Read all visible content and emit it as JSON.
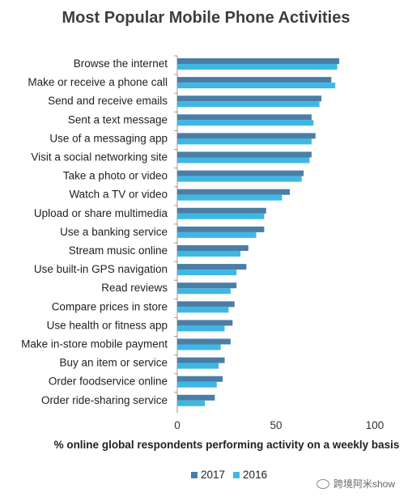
{
  "chart_data": {
    "type": "bar",
    "orientation": "horizontal",
    "title": "Most Popular Mobile Phone Activities",
    "xlabel": "% online global respondents performing activity on a weekly basis",
    "xlim": [
      0,
      100
    ],
    "xticks": [
      0,
      50,
      100
    ],
    "legend_position": "bottom",
    "categories": [
      "Browse the internet",
      "Make or receive a phone call",
      "Send and receive emails",
      "Sent a text message",
      "Use of a messaging app",
      "Visit a social networking site",
      "Take a photo or video",
      "Watch a TV or video",
      "Upload or share multimedia",
      "Use a banking service",
      "Stream music online",
      "Use built-in GPS navigation",
      "Read reviews",
      "Compare prices in store",
      "Use health or fitness app",
      "Make in-store mobile payment",
      "Buy an item or service",
      "Order foodservice online",
      "Order ride-sharing service"
    ],
    "series": [
      {
        "name": "2017",
        "color": "#4a7ea6",
        "values": [
          82,
          78,
          73,
          68,
          70,
          68,
          64,
          57,
          45,
          44,
          36,
          35,
          30,
          29,
          28,
          27,
          24,
          23,
          19
        ]
      },
      {
        "name": "2016",
        "color": "#3fb7e4",
        "values": [
          81,
          80,
          72,
          69,
          68,
          67,
          63,
          53,
          44,
          40,
          32,
          30,
          27,
          26,
          24,
          22,
          21,
          20,
          14
        ]
      }
    ]
  },
  "watermark": "跨境阿米show"
}
